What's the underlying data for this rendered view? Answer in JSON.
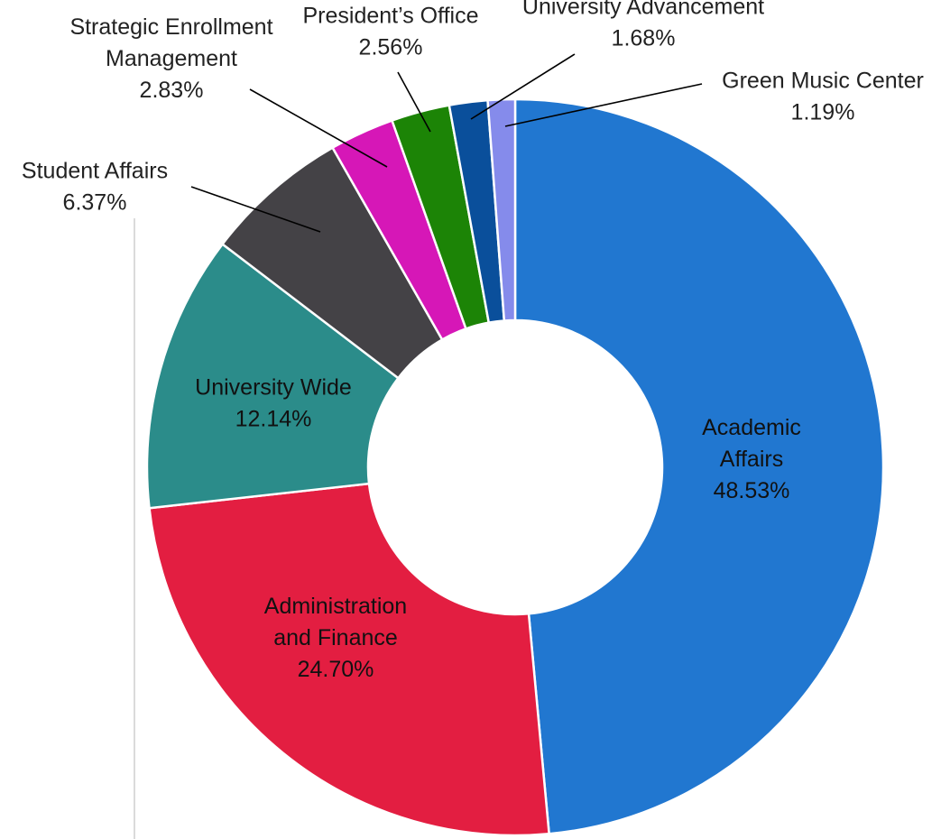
{
  "chart_data": {
    "type": "pie",
    "variant": "donut",
    "title": "",
    "slices": [
      {
        "name": "Academic Affairs",
        "label_lines": [
          "Academic",
          "Affairs"
        ],
        "value": 48.53,
        "value_label": "48.53%",
        "color": "#2177D0"
      },
      {
        "name": "Administration and Finance",
        "label_lines": [
          "Administration",
          "and Finance"
        ],
        "value": 24.7,
        "value_label": "24.70%",
        "color": "#E31E41"
      },
      {
        "name": "University Wide",
        "label_lines": [
          "University Wide"
        ],
        "value": 12.14,
        "value_label": "12.14%",
        "color": "#2B8C8A"
      },
      {
        "name": "Student Affairs",
        "label_lines": [
          "Student Affairs"
        ],
        "value": 6.37,
        "value_label": "6.37%",
        "color": "#444246"
      },
      {
        "name": "Strategic Enrollment Management",
        "label_lines": [
          "Strategic Enrollment",
          "Management"
        ],
        "value": 2.83,
        "value_label": "2.83%",
        "color": "#D617B7"
      },
      {
        "name": "President’s Office",
        "label_lines": [
          "President’s Office"
        ],
        "value": 2.56,
        "value_label": "2.56%",
        "color": "#1C8406"
      },
      {
        "name": "University Advancement",
        "label_lines": [
          "University Advancement"
        ],
        "value": 1.68,
        "value_label": "1.68%",
        "color": "#0A4F9B"
      },
      {
        "name": "Green Music Center",
        "label_lines": [
          "Green Music Center"
        ],
        "value": 1.19,
        "value_label": "1.19%",
        "color": "#858BEB"
      }
    ],
    "legend": "none"
  }
}
